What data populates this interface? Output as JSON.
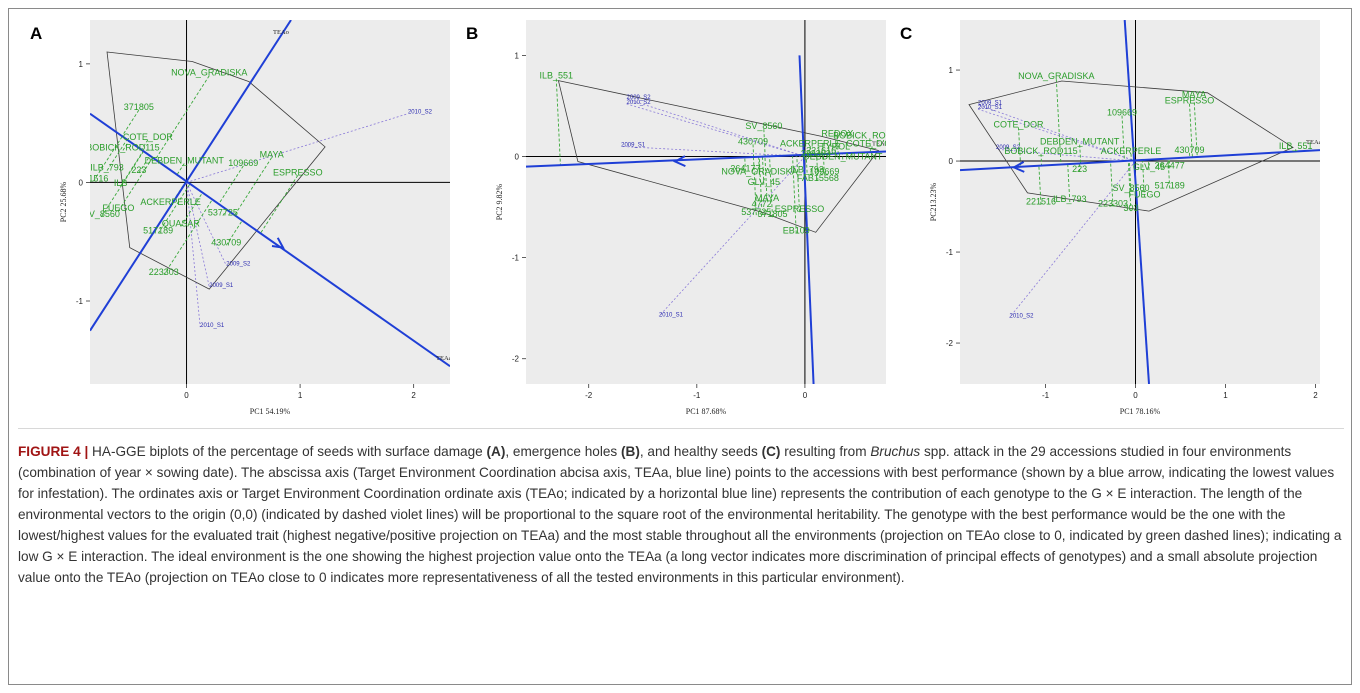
{
  "figure": {
    "panels": [
      {
        "letter": "A",
        "xlabel": "PC1 54.19%",
        "ylabel": "PC2 25.68%"
      },
      {
        "letter": "B",
        "xlabel": "PC1 87.68%",
        "ylabel": "PC2 9.82%"
      },
      {
        "letter": "C",
        "xlabel": "PC1 78.16%",
        "ylabel": "PC213.23%"
      }
    ],
    "caption": {
      "label": "FIGURE 4 |",
      "t1": " HA-GGE biplots of the percentage of seeds with surface damage ",
      "a": "(A)",
      "t2": ", emergence holes ",
      "b": "(B)",
      "t3": ", and healthy seeds ",
      "c": "(C)",
      "t4": " resulting from ",
      "genus": "Bruchus",
      "t5": " spp. attack in the 29 accessions studied in four environments (combination of year × sowing date). The abscissa axis (Target Environment Coordination abcisa axis, TEAa, blue line) points to the accessions with best performance (shown by a blue arrow, indicating the lowest values for infestation). The ordinates axis or Target Environment Coordination ordinate axis (TEAo; indicated by a horizontal blue line) represents the contribution of each genotype to the G × E interaction. The length of the environmental vectors to the origin (0,0) (indicated by dashed violet lines) will be proportional to the square root of the environmental heritability. The genotype with the best performance would be the one with the lowest/highest values for the evaluated trait (highest negative/positive projection on TEAa) and the most stable throughout all the environments (projection on TEAo close to 0, indicated by green dashed lines); indicating a low G × E interaction. The ideal environment is the one showing the highest projection value onto the TEAa (a long vector indicates more discrimination of principal effects of genotypes) and a small absolute projection value onto the TEAo (projection on TEAo close to 0 indicates more representativeness of all the tested environments in this particular environment)."
    }
  },
  "colors": {
    "panel_bg": "#ececec",
    "genotype": "#2a9d2a",
    "environment": "#2a2ab0",
    "teaa": "#1f3fd6",
    "polygon": "#3a3a3a",
    "env_vector": "#8a7ad8",
    "projection": "#3aa83a"
  },
  "chart_data": [
    {
      "type": "scatter",
      "panel": "A",
      "xlabel": "PC1 54.19%",
      "ylabel": "PC2 25.68%",
      "xlim": [
        -0.85,
        2.32
      ],
      "ylim": [
        -1.7,
        1.37
      ],
      "xticks": [
        0,
        1,
        2
      ],
      "yticks": [
        -1,
        0,
        1
      ],
      "teaa_label": "TEAa",
      "teao_label": "TEAo",
      "teaa": {
        "from": [
          -0.85,
          0.58
        ],
        "to": [
          2.32,
          -1.55
        ],
        "arrow_at": [
          0.85,
          -0.55
        ]
      },
      "teao": {
        "from": [
          -0.85,
          -1.25
        ],
        "to": [
          0.92,
          1.37
        ]
      },
      "polygon": [
        [
          -0.7,
          1.1
        ],
        [
          0.05,
          1.02
        ],
        [
          0.55,
          0.85
        ],
        [
          1.22,
          0.3
        ],
        [
          0.2,
          -0.9
        ],
        [
          -0.5,
          -0.55
        ]
      ],
      "environments": [
        {
          "name": "2010_S2",
          "x": 1.95,
          "y": 0.58
        },
        {
          "name": "2009_S2",
          "x": 0.35,
          "y": -0.7
        },
        {
          "name": "2009_S1",
          "x": 0.2,
          "y": -0.88
        },
        {
          "name": "2010_S1",
          "x": 0.12,
          "y": -1.22
        }
      ],
      "genotypes": [
        {
          "name": "NOVA_GRADISKA",
          "x": 0.2,
          "y": 0.9
        },
        {
          "name": "371805",
          "x": -0.42,
          "y": 0.61
        },
        {
          "name": "COTE_DOR",
          "x": -0.34,
          "y": 0.36
        },
        {
          "name": "BOBICK_ROD115",
          "x": -0.56,
          "y": 0.27
        },
        {
          "name": "DEBDEN_MUTANT",
          "x": -0.02,
          "y": 0.16
        },
        {
          "name": "MAYA",
          "x": 0.75,
          "y": 0.21
        },
        {
          "name": "109669",
          "x": 0.5,
          "y": 0.14
        },
        {
          "name": "ESPRESSO",
          "x": 0.98,
          "y": 0.06
        },
        {
          "name": "ILB_793",
          "x": -0.7,
          "y": 0.1
        },
        {
          "name": "223",
          "x": -0.42,
          "y": 0.08
        },
        {
          "name": "221516",
          "x": -0.82,
          "y": 0.01
        },
        {
          "name": "ILB",
          "x": -0.58,
          "y": -0.03
        },
        {
          "name": "ACKERPERLE",
          "x": -0.14,
          "y": -0.19
        },
        {
          "name": "537725",
          "x": 0.32,
          "y": -0.28
        },
        {
          "name": "SV_8560",
          "x": -0.75,
          "y": -0.29
        },
        {
          "name": "FUEGO",
          "x": -0.6,
          "y": -0.24
        },
        {
          "name": "QUASAR",
          "x": -0.05,
          "y": -0.37
        },
        {
          "name": "517189",
          "x": -0.25,
          "y": -0.43
        },
        {
          "name": "430709",
          "x": 0.35,
          "y": -0.53
        },
        {
          "name": "223303",
          "x": -0.2,
          "y": -0.78
        }
      ]
    },
    {
      "type": "scatter",
      "panel": "B",
      "xlabel": "PC1 87.68%",
      "ylabel": "PC2 9.82%",
      "xlim": [
        -2.58,
        0.75
      ],
      "ylim": [
        -2.25,
        1.35
      ],
      "xticks": [
        -2,
        -1,
        0
      ],
      "yticks": [
        -2,
        -1,
        0,
        1
      ],
      "teaa_label": "TEAa",
      "teao_label": "TEAo",
      "teaa": {
        "from": [
          -2.58,
          -0.1
        ],
        "to": [
          0.75,
          0.05
        ],
        "arrow_at": [
          -1.2,
          -0.05
        ]
      },
      "teao": {
        "from": [
          -0.05,
          1.0
        ],
        "to": [
          0.08,
          -2.25
        ]
      },
      "polygon": [
        [
          -2.28,
          0.75
        ],
        [
          0.15,
          0.2
        ],
        [
          0.68,
          0.06
        ],
        [
          0.1,
          -0.75
        ],
        [
          -0.4,
          -0.55
        ],
        [
          -2.1,
          -0.05
        ]
      ],
      "environments": [
        {
          "name": "2009_S2",
          "x": -1.65,
          "y": 0.57
        },
        {
          "name": "2010_S2",
          "x": -1.65,
          "y": 0.52
        },
        {
          "name": "2009_S1",
          "x": -1.7,
          "y": 0.1
        },
        {
          "name": "2010_S1",
          "x": -1.35,
          "y": -1.58
        }
      ],
      "genotypes": [
        {
          "name": "ILB_551",
          "x": -2.3,
          "y": 0.77
        },
        {
          "name": "SV_8560",
          "x": -0.38,
          "y": 0.27
        },
        {
          "name": "REDOX",
          "x": 0.3,
          "y": 0.2
        },
        {
          "name": "BOBICK_ROD115",
          "x": 0.6,
          "y": 0.18
        },
        {
          "name": "COTE_D'OR",
          "x": 0.62,
          "y": 0.1
        },
        {
          "name": "TYROL",
          "x": 0.28,
          "y": 0.07
        },
        {
          "name": "221616",
          "x": 0.15,
          "y": 0.03
        },
        {
          "name": "223303",
          "x": 0.1,
          "y": 0.0
        },
        {
          "name": "DEBDEN_MUTANT",
          "x": 0.35,
          "y": -0.03
        },
        {
          "name": "ACKERPERLE",
          "x": 0.05,
          "y": 0.1
        },
        {
          "name": "430709",
          "x": -0.48,
          "y": 0.12
        },
        {
          "name": "264177",
          "x": -0.55,
          "y": -0.15
        },
        {
          "name": "NOVA_GRADISKA",
          "x": -0.42,
          "y": -0.18
        },
        {
          "name": "GLV_45",
          "x": -0.38,
          "y": -0.28
        },
        {
          "name": "ILB_793",
          "x": 0.02,
          "y": -0.16
        },
        {
          "name": "109669",
          "x": 0.18,
          "y": -0.18
        },
        {
          "name": "FAB15568",
          "x": 0.12,
          "y": -0.24
        },
        {
          "name": "MAYA",
          "x": -0.35,
          "y": -0.44
        },
        {
          "name": "4772",
          "x": -0.4,
          "y": -0.5
        },
        {
          "name": "537725",
          "x": -0.45,
          "y": -0.58
        },
        {
          "name": "371805",
          "x": -0.3,
          "y": -0.6
        },
        {
          "name": "ESPRESSO",
          "x": -0.05,
          "y": -0.55
        },
        {
          "name": "EB109",
          "x": -0.08,
          "y": -0.76
        }
      ]
    },
    {
      "type": "scatter",
      "panel": "C",
      "xlabel": "PC1 78.16%",
      "ylabel": "PC213.23%",
      "xlim": [
        -1.95,
        2.05
      ],
      "ylim": [
        -2.45,
        1.55
      ],
      "xticks": [
        -1,
        0,
        1,
        2
      ],
      "yticks": [
        -2,
        -1,
        0,
        1
      ],
      "teaa_label": "TEAa",
      "teao_label": "TEAo",
      "teaa": {
        "from": [
          -1.95,
          -0.1
        ],
        "to": [
          2.05,
          0.12
        ],
        "arrow_at": [
          -1.35,
          -0.07
        ]
      },
      "teao": {
        "from": [
          -0.12,
          1.55
        ],
        "to": [
          0.15,
          -2.45
        ]
      },
      "polygon": [
        [
          -1.85,
          0.62
        ],
        [
          -0.82,
          0.88
        ],
        [
          0.8,
          0.75
        ],
        [
          1.75,
          0.15
        ],
        [
          0.15,
          -0.55
        ],
        [
          -1.2,
          -0.35
        ]
      ],
      "environments": [
        {
          "name": "2009_S1",
          "x": -1.75,
          "y": 0.62
        },
        {
          "name": "2010_S1",
          "x": -1.75,
          "y": 0.57
        },
        {
          "name": "2009_S2",
          "x": -1.55,
          "y": 0.13
        },
        {
          "name": "2010_S2",
          "x": -1.4,
          "y": -1.72
        }
      ],
      "genotypes": [
        {
          "name": "NOVA_GRADISKA",
          "x": -0.88,
          "y": 0.9
        },
        {
          "name": "MAYA",
          "x": 0.65,
          "y": 0.7
        },
        {
          "name": "ESPRESSO",
          "x": 0.6,
          "y": 0.63
        },
        {
          "name": "109669",
          "x": -0.15,
          "y": 0.5
        },
        {
          "name": "COTE_DOR",
          "x": -1.3,
          "y": 0.37
        },
        {
          "name": "ILB_551",
          "x": 1.78,
          "y": 0.13
        },
        {
          "name": "430709",
          "x": 0.6,
          "y": 0.09
        },
        {
          "name": "BOBICK_ROD115",
          "x": -1.05,
          "y": 0.08
        },
        {
          "name": "DEBDEN_MUTANT",
          "x": -0.62,
          "y": 0.18
        },
        {
          "name": "SV_8560",
          "x": -0.05,
          "y": -0.33
        },
        {
          "name": "517189",
          "x": 0.38,
          "y": -0.3
        },
        {
          "name": "FUEGO",
          "x": 0.1,
          "y": -0.4
        },
        {
          "name": "GLV_45",
          "x": 0.15,
          "y": -0.1
        },
        {
          "name": "264477",
          "x": 0.38,
          "y": -0.08
        },
        {
          "name": "223",
          "x": -0.62,
          "y": -0.12
        },
        {
          "name": "ILB_793",
          "x": -0.73,
          "y": -0.45
        },
        {
          "name": "221516",
          "x": -1.05,
          "y": -0.48
        },
        {
          "name": "223303",
          "x": -0.25,
          "y": -0.5
        },
        {
          "name": "303",
          "x": -0.05,
          "y": -0.55
        },
        {
          "name": "ACKERPERLE",
          "x": -0.05,
          "y": 0.08
        }
      ]
    }
  ]
}
